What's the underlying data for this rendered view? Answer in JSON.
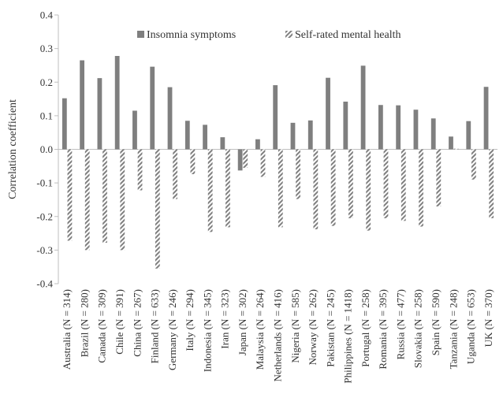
{
  "chart_data": {
    "type": "bar",
    "title": "",
    "xlabel": "",
    "ylabel": "Correlation coefficient",
    "ylim": [
      -0.4,
      0.4
    ],
    "yticks": [
      "0.4",
      "0.3",
      "0.2",
      "0.1",
      "0.0",
      "-0.1",
      "-0.2",
      "-0.3",
      "-0.4"
    ],
    "legend_position": "top",
    "categories": [
      "Australia (N = 314)",
      "Brazil (N = 280)",
      "Canada (N = 309)",
      "Chile (N = 391)",
      "China (N = 267)",
      "Finland (N = 633)",
      "Germany (N = 246)",
      "Italy (N = 294)",
      "Indonesia (N = 345)",
      "Iran (N = 323)",
      "Japan (N = 302)",
      "Malaysia (N = 264)",
      "Netherlands (N = 416)",
      "Nigeria (N = 585)",
      "Norway (N = 262)",
      "Pakistan (N = 245)",
      "Philippines (N = 1418)",
      "Portugal (N = 258)",
      "Romania (N = 395)",
      "Russia (N = 477)",
      "Slovakia (N = 258)",
      "Spain (N = 590)",
      "Tanzania (N = 248)",
      "Uganda (N = 653)",
      "UK (N = 370)"
    ],
    "series": [
      {
        "name": "Insomnia symptoms",
        "color": "#7f7f7f",
        "pattern": "solid",
        "values": [
          0.152,
          0.265,
          0.212,
          0.278,
          0.115,
          0.246,
          0.185,
          0.085,
          0.073,
          0.036,
          -0.063,
          0.03,
          0.191,
          0.079,
          0.086,
          0.213,
          0.142,
          0.249,
          0.132,
          0.131,
          0.118,
          0.092,
          0.038,
          0.084,
          0.186
        ]
      },
      {
        "name": "Self-rated mental health",
        "color": "#7f7f7f",
        "pattern": "diagonal-hatch",
        "values": [
          -0.272,
          -0.3,
          -0.278,
          -0.3,
          -0.122,
          -0.355,
          -0.148,
          -0.074,
          -0.246,
          -0.232,
          -0.055,
          -0.082,
          -0.232,
          -0.148,
          -0.238,
          -0.228,
          -0.205,
          -0.242,
          -0.205,
          -0.213,
          -0.23,
          -0.17,
          0.002,
          -0.09,
          -0.205
        ]
      }
    ]
  }
}
